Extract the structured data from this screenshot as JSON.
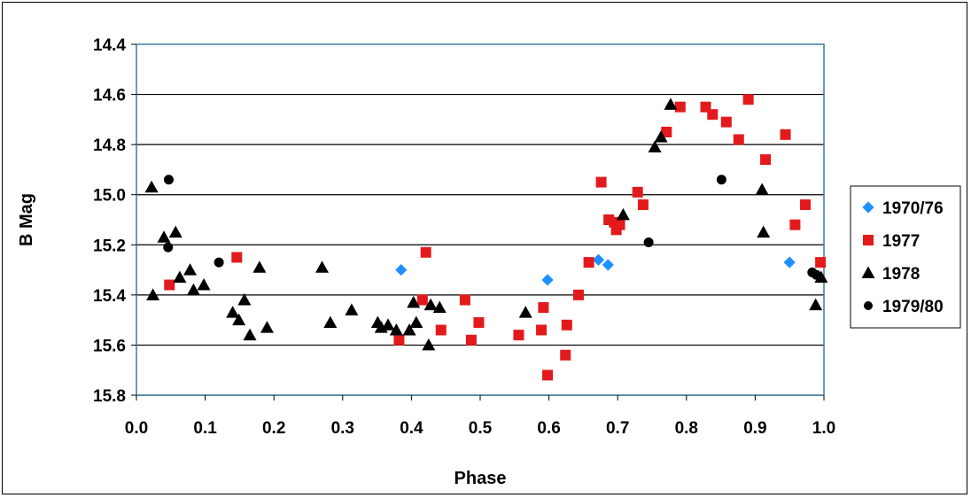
{
  "chart_data": {
    "type": "scatter",
    "title": "",
    "xlabel": "Phase",
    "ylabel": "B Mag",
    "xlim": [
      0.0,
      1.0
    ],
    "ylim": [
      14.4,
      15.8
    ],
    "y_inverted": true,
    "x_ticks": [
      "0.0",
      "0.1",
      "0.2",
      "0.3",
      "0.4",
      "0.5",
      "0.6",
      "0.7",
      "0.8",
      "0.9",
      "1.0"
    ],
    "y_ticks": [
      "14.4",
      "14.6",
      "14.8",
      "15.0",
      "15.2",
      "15.4",
      "15.6",
      "15.8"
    ],
    "grid": "horizontal",
    "legend_position": "right",
    "series": [
      {
        "name": "1970/76",
        "marker": "diamond",
        "color": "#1e90ff",
        "points": [
          [
            0.385,
            15.3
          ],
          [
            0.598,
            15.34
          ],
          [
            0.672,
            15.26
          ],
          [
            0.686,
            15.28
          ],
          [
            0.95,
            15.27
          ]
        ]
      },
      {
        "name": "1977",
        "marker": "square",
        "color": "#e31a1c",
        "points": [
          [
            0.048,
            15.36
          ],
          [
            0.146,
            15.25
          ],
          [
            0.382,
            15.58
          ],
          [
            0.416,
            15.42
          ],
          [
            0.421,
            15.23
          ],
          [
            0.443,
            15.54
          ],
          [
            0.478,
            15.42
          ],
          [
            0.487,
            15.58
          ],
          [
            0.498,
            15.51
          ],
          [
            0.556,
            15.56
          ],
          [
            0.589,
            15.54
          ],
          [
            0.592,
            15.45
          ],
          [
            0.598,
            15.72
          ],
          [
            0.624,
            15.64
          ],
          [
            0.626,
            15.52
          ],
          [
            0.643,
            15.4
          ],
          [
            0.658,
            15.27
          ],
          [
            0.676,
            14.95
          ],
          [
            0.687,
            15.1
          ],
          [
            0.695,
            15.11
          ],
          [
            0.698,
            15.14
          ],
          [
            0.703,
            15.12
          ],
          [
            0.729,
            14.99
          ],
          [
            0.737,
            15.04
          ],
          [
            0.771,
            14.75
          ],
          [
            0.791,
            14.65
          ],
          [
            0.828,
            14.65
          ],
          [
            0.838,
            14.68
          ],
          [
            0.858,
            14.71
          ],
          [
            0.876,
            14.78
          ],
          [
            0.89,
            14.62
          ],
          [
            0.915,
            14.86
          ],
          [
            0.944,
            14.76
          ],
          [
            0.958,
            15.12
          ],
          [
            0.973,
            15.04
          ],
          [
            0.995,
            15.27
          ]
        ]
      },
      {
        "name": "1978",
        "marker": "triangle",
        "color": "#000000",
        "points": [
          [
            0.022,
            14.97
          ],
          [
            0.024,
            15.4
          ],
          [
            0.04,
            15.17
          ],
          [
            0.057,
            15.15
          ],
          [
            0.063,
            15.33
          ],
          [
            0.078,
            15.3
          ],
          [
            0.083,
            15.38
          ],
          [
            0.098,
            15.36
          ],
          [
            0.14,
            15.47
          ],
          [
            0.149,
            15.5
          ],
          [
            0.157,
            15.42
          ],
          [
            0.165,
            15.56
          ],
          [
            0.179,
            15.29
          ],
          [
            0.19,
            15.53
          ],
          [
            0.27,
            15.29
          ],
          [
            0.282,
            15.51
          ],
          [
            0.313,
            15.46
          ],
          [
            0.351,
            15.51
          ],
          [
            0.356,
            15.53
          ],
          [
            0.366,
            15.52
          ],
          [
            0.378,
            15.54
          ],
          [
            0.397,
            15.54
          ],
          [
            0.403,
            15.43
          ],
          [
            0.407,
            15.51
          ],
          [
            0.425,
            15.6
          ],
          [
            0.428,
            15.44
          ],
          [
            0.441,
            15.45
          ],
          [
            0.566,
            15.47
          ],
          [
            0.708,
            15.08
          ],
          [
            0.754,
            14.81
          ],
          [
            0.763,
            14.77
          ],
          [
            0.777,
            14.64
          ],
          [
            0.91,
            14.98
          ],
          [
            0.912,
            15.15
          ],
          [
            0.988,
            15.44
          ],
          [
            0.996,
            15.33
          ]
        ]
      },
      {
        "name": "1979/80",
        "marker": "circle",
        "color": "#000000",
        "points": [
          [
            0.046,
            15.21
          ],
          [
            0.047,
            14.94
          ],
          [
            0.12,
            15.27
          ],
          [
            0.745,
            15.19
          ],
          [
            0.851,
            14.94
          ],
          [
            0.983,
            15.31
          ],
          [
            0.989,
            15.32
          ]
        ]
      }
    ]
  }
}
